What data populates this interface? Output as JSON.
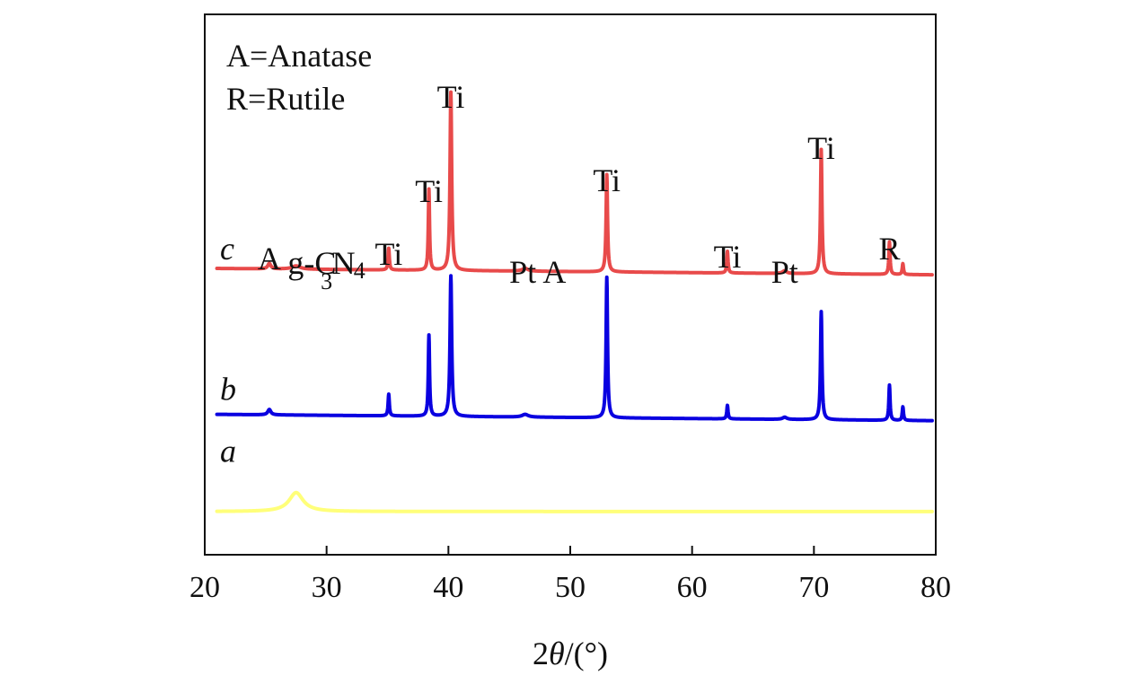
{
  "chart_data": {
    "type": "line",
    "title": "",
    "xlabel": {
      "prefix": "2",
      "theta": "θ",
      "suffix": "/(°)"
    },
    "ylabel": "",
    "xlim": [
      20,
      80
    ],
    "xticks": [
      "20",
      "30",
      "40",
      "50",
      "60",
      "70",
      "80"
    ],
    "legend_notes": [
      "A=Anatase",
      "R=Rutile"
    ],
    "colors": {
      "a": "#ffff7a",
      "b": "#0a00e0",
      "c": "#e84a4a",
      "axis": "#111111"
    },
    "series": [
      {
        "name": "a",
        "baseline": 0.08,
        "slope": 0.0,
        "peaks": [
          {
            "x": 27.5,
            "h": 0.035,
            "w": 0.7
          }
        ]
      },
      {
        "name": "b",
        "baseline": 0.26,
        "slope": 0.0002,
        "peaks": [
          {
            "x": 25.3,
            "h": 0.01,
            "w": 0.15
          },
          {
            "x": 35.1,
            "h": 0.04,
            "w": 0.06
          },
          {
            "x": 38.4,
            "h": 0.15,
            "w": 0.06
          },
          {
            "x": 40.2,
            "h": 0.26,
            "w": 0.08
          },
          {
            "x": 46.3,
            "h": 0.005,
            "w": 0.3
          },
          {
            "x": 53.0,
            "h": 0.26,
            "w": 0.07
          },
          {
            "x": 62.9,
            "h": 0.025,
            "w": 0.06
          },
          {
            "x": 67.6,
            "h": 0.004,
            "w": 0.2
          },
          {
            "x": 70.6,
            "h": 0.2,
            "w": 0.07
          },
          {
            "x": 76.2,
            "h": 0.065,
            "w": 0.06
          },
          {
            "x": 77.3,
            "h": 0.025,
            "w": 0.06
          }
        ]
      },
      {
        "name": "c",
        "baseline": 0.53,
        "slope": 0.0002,
        "peaks": [
          {
            "x": 25.3,
            "h": 0.01,
            "w": 0.15
          },
          {
            "x": 27.5,
            "h": 0.006,
            "w": 0.4
          },
          {
            "x": 35.1,
            "h": 0.04,
            "w": 0.06
          },
          {
            "x": 38.4,
            "h": 0.15,
            "w": 0.06
          },
          {
            "x": 40.2,
            "h": 0.33,
            "w": 0.08
          },
          {
            "x": 46.3,
            "h": 0.005,
            "w": 0.3
          },
          {
            "x": 53.0,
            "h": 0.18,
            "w": 0.07
          },
          {
            "x": 62.9,
            "h": 0.04,
            "w": 0.06
          },
          {
            "x": 67.6,
            "h": 0.005,
            "w": 0.2
          },
          {
            "x": 70.6,
            "h": 0.23,
            "w": 0.07
          },
          {
            "x": 76.2,
            "h": 0.06,
            "w": 0.06
          },
          {
            "x": 77.3,
            "h": 0.02,
            "w": 0.06
          }
        ]
      }
    ],
    "series_labels": [
      {
        "text": "a",
        "series": "a"
      },
      {
        "text": "b",
        "series": "b"
      },
      {
        "text": "c",
        "series": "c"
      }
    ],
    "annotations": [
      {
        "text": "A",
        "x": 25.3
      },
      {
        "text": "g-C",
        "x": 28.8
      },
      {
        "text": "3",
        "x": 30.0
      },
      {
        "text": "N",
        "x": 31.4
      },
      {
        "text": "4",
        "x": 32.7
      },
      {
        "text": "Ti",
        "x": 35.1
      },
      {
        "text": "Ti",
        "x": 38.4
      },
      {
        "text": "Ti",
        "x": 40.2
      },
      {
        "text": "Pt",
        "x": 46.1
      },
      {
        "text": "A",
        "x": 48.7
      },
      {
        "text": "Ti",
        "x": 53.0
      },
      {
        "text": "Ti",
        "x": 62.9
      },
      {
        "text": "Pt",
        "x": 67.6
      },
      {
        "text": "Ti",
        "x": 70.6
      },
      {
        "text": "R",
        "x": 76.2
      }
    ]
  }
}
